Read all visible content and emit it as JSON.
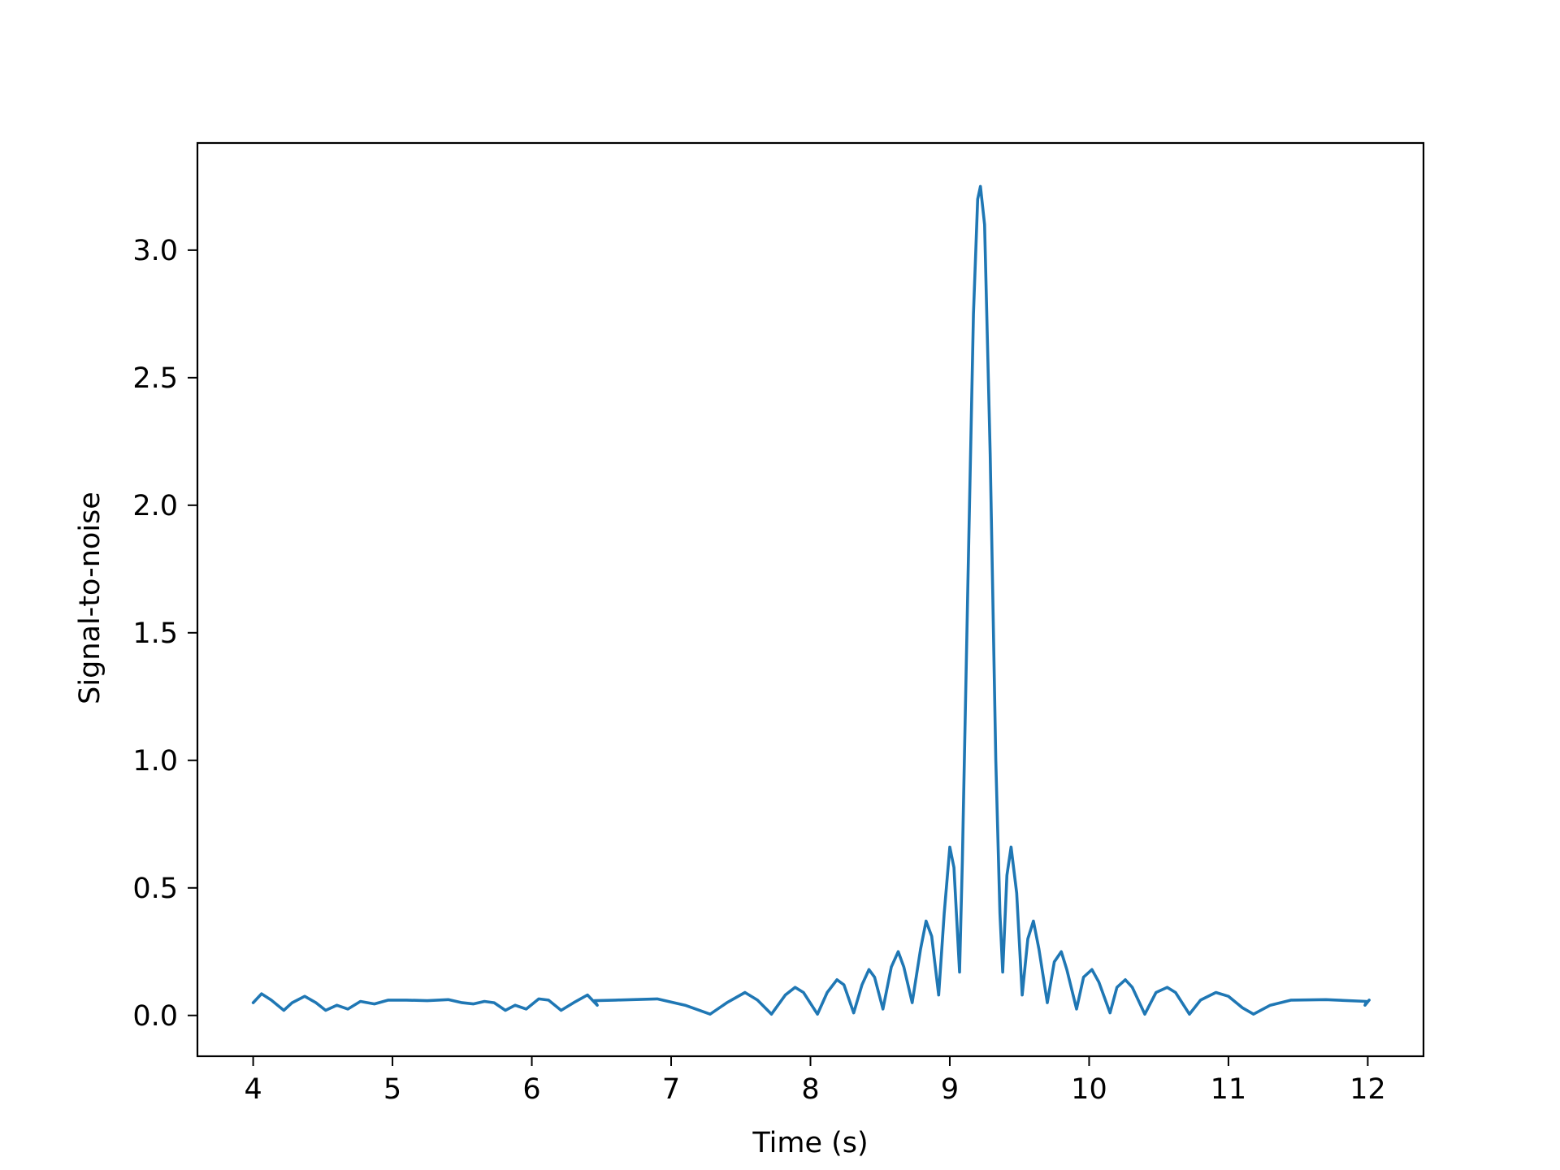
{
  "chart_data": {
    "type": "line",
    "title": "",
    "xlabel": "Time (s)",
    "ylabel": "Signal-to-noise",
    "xlim": [
      3.6,
      12.4
    ],
    "ylim": [
      -0.16,
      3.42
    ],
    "xticks": [
      4,
      5,
      6,
      7,
      8,
      9,
      10,
      11,
      12
    ],
    "xtick_labels": [
      "4",
      "5",
      "6",
      "7",
      "8",
      "9",
      "10",
      "11",
      "12"
    ],
    "yticks": [
      0.0,
      0.5,
      1.0,
      1.5,
      2.0,
      2.5,
      3.0
    ],
    "ytick_labels": [
      "0.0",
      "0.5",
      "1.0",
      "1.5",
      "2.0",
      "2.5",
      "3.0"
    ],
    "grid": false,
    "legend": "none",
    "line_color": "#1f77b4",
    "series": [
      {
        "points": [
          [
            4.0,
            0.05
          ],
          [
            4.06,
            0.085
          ],
          [
            4.13,
            0.06
          ],
          [
            4.22,
            0.02
          ],
          [
            4.28,
            0.05
          ],
          [
            4.37,
            0.075
          ],
          [
            4.45,
            0.05
          ],
          [
            4.52,
            0.02
          ],
          [
            4.6,
            0.04
          ],
          [
            4.68,
            0.025
          ],
          [
            4.77,
            0.055
          ],
          [
            4.87,
            0.045
          ],
          [
            4.97,
            0.06
          ],
          [
            5.1,
            0.06
          ],
          [
            5.25,
            0.058
          ],
          [
            5.4,
            0.062
          ],
          [
            5.5,
            0.05
          ],
          [
            5.58,
            0.045
          ],
          [
            5.66,
            0.055
          ],
          [
            5.73,
            0.05
          ],
          [
            5.81,
            0.02
          ],
          [
            5.88,
            0.04
          ],
          [
            5.96,
            0.025
          ],
          [
            6.05,
            0.065
          ],
          [
            6.12,
            0.06
          ],
          [
            6.21,
            0.02
          ],
          [
            6.3,
            0.05
          ],
          [
            6.4,
            0.08
          ],
          [
            6.47,
            0.04
          ],
          [
            6.45,
            0.058
          ],
          [
            6.6,
            0.06
          ],
          [
            6.9,
            0.065
          ],
          [
            7.1,
            0.04
          ],
          [
            7.28,
            0.005
          ],
          [
            7.4,
            0.05
          ],
          [
            7.53,
            0.09
          ],
          [
            7.62,
            0.06
          ],
          [
            7.72,
            0.005
          ],
          [
            7.82,
            0.08
          ],
          [
            7.89,
            0.11
          ],
          [
            7.95,
            0.09
          ],
          [
            8.05,
            0.005
          ],
          [
            8.12,
            0.09
          ],
          [
            8.19,
            0.14
          ],
          [
            8.24,
            0.12
          ],
          [
            8.31,
            0.01
          ],
          [
            8.37,
            0.12
          ],
          [
            8.42,
            0.18
          ],
          [
            8.46,
            0.15
          ],
          [
            8.52,
            0.025
          ],
          [
            8.58,
            0.19
          ],
          [
            8.63,
            0.25
          ],
          [
            8.67,
            0.19
          ],
          [
            8.73,
            0.05
          ],
          [
            8.79,
            0.26
          ],
          [
            8.83,
            0.37
          ],
          [
            8.87,
            0.31
          ],
          [
            8.92,
            0.08
          ],
          [
            8.96,
            0.4
          ],
          [
            9.0,
            0.66
          ],
          [
            9.03,
            0.58
          ],
          [
            9.07,
            0.17
          ],
          [
            9.09,
            0.6
          ],
          [
            9.13,
            1.7
          ],
          [
            9.17,
            2.75
          ],
          [
            9.2,
            3.2
          ],
          [
            9.22,
            3.25
          ],
          [
            9.25,
            3.1
          ],
          [
            9.29,
            2.2
          ],
          [
            9.33,
            1.0
          ],
          [
            9.36,
            0.4
          ],
          [
            9.38,
            0.17
          ],
          [
            9.41,
            0.55
          ],
          [
            9.44,
            0.66
          ],
          [
            9.48,
            0.48
          ],
          [
            9.52,
            0.08
          ],
          [
            9.56,
            0.3
          ],
          [
            9.6,
            0.37
          ],
          [
            9.64,
            0.26
          ],
          [
            9.7,
            0.05
          ],
          [
            9.75,
            0.21
          ],
          [
            9.8,
            0.25
          ],
          [
            9.84,
            0.18
          ],
          [
            9.91,
            0.025
          ],
          [
            9.96,
            0.15
          ],
          [
            10.02,
            0.18
          ],
          [
            10.07,
            0.13
          ],
          [
            10.15,
            0.01
          ],
          [
            10.2,
            0.11
          ],
          [
            10.26,
            0.14
          ],
          [
            10.31,
            0.11
          ],
          [
            10.4,
            0.005
          ],
          [
            10.48,
            0.09
          ],
          [
            10.56,
            0.11
          ],
          [
            10.62,
            0.09
          ],
          [
            10.72,
            0.005
          ],
          [
            10.8,
            0.06
          ],
          [
            10.91,
            0.09
          ],
          [
            11.0,
            0.075
          ],
          [
            11.1,
            0.03
          ],
          [
            11.18,
            0.005
          ],
          [
            11.3,
            0.04
          ],
          [
            11.45,
            0.06
          ],
          [
            11.7,
            0.062
          ],
          [
            11.99,
            0.055
          ],
          [
            11.98,
            0.04
          ],
          [
            12.01,
            0.06
          ]
        ]
      }
    ]
  }
}
